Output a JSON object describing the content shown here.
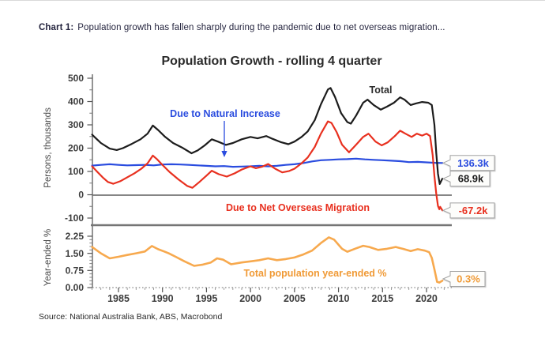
{
  "header": {
    "prefix": "Chart 1:",
    "text": "Population growth has fallen sharply during the pandemic due to net overseas migration..."
  },
  "source": "Source: National Australia Bank, ABS, Macrobond",
  "chart_data": [
    {
      "type": "line",
      "panel": "top",
      "title": "Population Growth - rolling 4 quarter",
      "ylabel": "Persons, thousands",
      "units": "thousands of persons",
      "ylim": [
        -135,
        520
      ],
      "yticks": [
        500,
        400,
        300,
        200,
        100,
        0,
        -100
      ],
      "xlim": [
        1981.8,
        2022.5
      ],
      "xticks": [
        1985,
        1990,
        1995,
        2000,
        2005,
        2010,
        2015,
        2020
      ],
      "grid": false,
      "legend_position": "inline-annotations",
      "series": [
        {
          "name": "Total",
          "color": "#1c1c1c",
          "end_label": "68.9k",
          "points": [
            [
              1982.0,
              258
            ],
            [
              1982.5,
              240
            ],
            [
              1983.0,
              222
            ],
            [
              1984.0,
              198
            ],
            [
              1984.8,
              192
            ],
            [
              1985.5,
              200
            ],
            [
              1986.5,
              218
            ],
            [
              1987.5,
              238
            ],
            [
              1988.3,
              262
            ],
            [
              1988.9,
              297
            ],
            [
              1989.5,
              278
            ],
            [
              1990.3,
              248
            ],
            [
              1991.2,
              222
            ],
            [
              1992.2,
              203
            ],
            [
              1993.3,
              178
            ],
            [
              1994.0,
              190
            ],
            [
              1994.8,
              212
            ],
            [
              1995.6,
              238
            ],
            [
              1996.3,
              228
            ],
            [
              1997.2,
              214
            ],
            [
              1998.0,
              222
            ],
            [
              1999.0,
              238
            ],
            [
              2000.0,
              248
            ],
            [
              2000.8,
              242
            ],
            [
              2001.8,
              252
            ],
            [
              2002.5,
              240
            ],
            [
              2003.5,
              225
            ],
            [
              2004.3,
              217
            ],
            [
              2005.0,
              228
            ],
            [
              2005.8,
              248
            ],
            [
              2006.5,
              272
            ],
            [
              2007.3,
              320
            ],
            [
              2008.0,
              388
            ],
            [
              2008.8,
              452
            ],
            [
              2009.1,
              458
            ],
            [
              2009.6,
              420
            ],
            [
              2010.3,
              350
            ],
            [
              2011.0,
              312
            ],
            [
              2011.4,
              305
            ],
            [
              2012.0,
              340
            ],
            [
              2012.8,
              395
            ],
            [
              2013.3,
              408
            ],
            [
              2014.0,
              385
            ],
            [
              2014.8,
              365
            ],
            [
              2015.5,
              378
            ],
            [
              2016.3,
              395
            ],
            [
              2017.0,
              418
            ],
            [
              2017.5,
              408
            ],
            [
              2018.2,
              385
            ],
            [
              2018.8,
              392
            ],
            [
              2019.5,
              398
            ],
            [
              2020.2,
              395
            ],
            [
              2020.6,
              385
            ],
            [
              2020.9,
              300
            ],
            [
              2021.1,
              180
            ],
            [
              2021.3,
              90
            ],
            [
              2021.5,
              46
            ],
            [
              2021.65,
              58
            ],
            [
              2021.8,
              69
            ]
          ]
        },
        {
          "name": "Due to Natural Increase",
          "color": "#2a4cdf",
          "end_label": "136.3k",
          "points": [
            [
              1982,
              125
            ],
            [
              1983,
              128
            ],
            [
              1984,
              131
            ],
            [
              1985,
              128
            ],
            [
              1986,
              126
            ],
            [
              1987,
              127
            ],
            [
              1988,
              128
            ],
            [
              1989,
              126
            ],
            [
              1990,
              130
            ],
            [
              1991,
              131
            ],
            [
              1992,
              130
            ],
            [
              1993,
              128
            ],
            [
              1994,
              126
            ],
            [
              1995,
              124
            ],
            [
              1996,
              122
            ],
            [
              1997,
              123
            ],
            [
              1998,
              120
            ],
            [
              1999,
              121
            ],
            [
              2000,
              122
            ],
            [
              2001,
              124
            ],
            [
              2002,
              122
            ],
            [
              2003,
              124
            ],
            [
              2004,
              128
            ],
            [
              2005,
              131
            ],
            [
              2006,
              136
            ],
            [
              2007,
              143
            ],
            [
              2008,
              148
            ],
            [
              2009,
              150
            ],
            [
              2010,
              152
            ],
            [
              2011,
              153
            ],
            [
              2012,
              155
            ],
            [
              2013,
              152
            ],
            [
              2014,
              150
            ],
            [
              2015,
              148
            ],
            [
              2016,
              146
            ],
            [
              2017,
              144
            ],
            [
              2018,
              140
            ],
            [
              2019,
              141
            ],
            [
              2020,
              139
            ],
            [
              2021,
              137
            ],
            [
              2021.8,
              136.3
            ]
          ]
        },
        {
          "name": "Due to Net Overseas Migration",
          "color": "#e8301f",
          "end_label": "-67.2k",
          "points": [
            [
              1982.0,
              122
            ],
            [
              1982.6,
              98
            ],
            [
              1983.2,
              75
            ],
            [
              1983.8,
              55
            ],
            [
              1984.4,
              47
            ],
            [
              1985.2,
              58
            ],
            [
              1986.0,
              75
            ],
            [
              1986.8,
              92
            ],
            [
              1987.6,
              112
            ],
            [
              1988.3,
              135
            ],
            [
              1988.9,
              168
            ],
            [
              1989.4,
              152
            ],
            [
              1990.0,
              128
            ],
            [
              1990.8,
              98
            ],
            [
              1991.8,
              66
            ],
            [
              1992.8,
              38
            ],
            [
              1993.4,
              30
            ],
            [
              1994.2,
              55
            ],
            [
              1995.0,
              82
            ],
            [
              1995.6,
              103
            ],
            [
              1996.4,
              88
            ],
            [
              1997.3,
              78
            ],
            [
              1998.2,
              92
            ],
            [
              1999.0,
              108
            ],
            [
              2000.0,
              122
            ],
            [
              2000.6,
              114
            ],
            [
              2001.3,
              120
            ],
            [
              2002.0,
              132
            ],
            [
              2002.8,
              112
            ],
            [
              2003.6,
              96
            ],
            [
              2004.4,
              102
            ],
            [
              2005.0,
              112
            ],
            [
              2005.8,
              135
            ],
            [
              2006.5,
              160
            ],
            [
              2007.3,
              205
            ],
            [
              2008.0,
              262
            ],
            [
              2008.8,
              315
            ],
            [
              2009.2,
              308
            ],
            [
              2009.8,
              268
            ],
            [
              2010.4,
              215
            ],
            [
              2011.2,
              182
            ],
            [
              2012.0,
              215
            ],
            [
              2012.8,
              248
            ],
            [
              2013.4,
              262
            ],
            [
              2014.2,
              228
            ],
            [
              2014.9,
              212
            ],
            [
              2015.6,
              225
            ],
            [
              2016.4,
              252
            ],
            [
              2017.0,
              275
            ],
            [
              2017.6,
              262
            ],
            [
              2018.3,
              248
            ],
            [
              2018.9,
              262
            ],
            [
              2019.5,
              254
            ],
            [
              2020.0,
              262
            ],
            [
              2020.4,
              252
            ],
            [
              2020.7,
              170
            ],
            [
              2020.9,
              80
            ],
            [
              2021.1,
              5
            ],
            [
              2021.3,
              -48
            ],
            [
              2021.45,
              -62
            ],
            [
              2021.55,
              -52
            ],
            [
              2021.8,
              -67.2
            ]
          ]
        }
      ]
    },
    {
      "type": "line",
      "panel": "bottom",
      "ylabel": "Year-ended %",
      "units": "percent",
      "ylim": [
        0,
        2.5
      ],
      "yticks": [
        2.25,
        1.5,
        0.75,
        0
      ],
      "ytick_labels": [
        "2.25",
        "1.50",
        "0.75",
        "0.00"
      ],
      "xlim": [
        1981.8,
        2022.5
      ],
      "xticks": [
        1985,
        1990,
        1995,
        2000,
        2005,
        2010,
        2015,
        2020
      ],
      "grid": false,
      "series": [
        {
          "name": "Total population year-ended %",
          "color": "#f7a94e",
          "end_label": "0.3%",
          "points": [
            [
              1982.0,
              1.78
            ],
            [
              1983.0,
              1.5
            ],
            [
              1984.0,
              1.28
            ],
            [
              1985.0,
              1.35
            ],
            [
              1986.0,
              1.43
            ],
            [
              1987.0,
              1.5
            ],
            [
              1988.0,
              1.58
            ],
            [
              1988.8,
              1.82
            ],
            [
              1989.5,
              1.68
            ],
            [
              1990.2,
              1.58
            ],
            [
              1990.7,
              1.5
            ],
            [
              1991.5,
              1.35
            ],
            [
              1992.5,
              1.15
            ],
            [
              1993.6,
              0.95
            ],
            [
              1994.5,
              1.0
            ],
            [
              1995.5,
              1.1
            ],
            [
              1996.2,
              1.28
            ],
            [
              1996.9,
              1.22
            ],
            [
              1997.8,
              1.02
            ],
            [
              1999.0,
              1.1
            ],
            [
              2000.0,
              1.15
            ],
            [
              2001.0,
              1.2
            ],
            [
              2002.0,
              1.28
            ],
            [
              2003.0,
              1.2
            ],
            [
              2004.0,
              1.25
            ],
            [
              2005.0,
              1.32
            ],
            [
              2006.0,
              1.45
            ],
            [
              2007.0,
              1.62
            ],
            [
              2008.0,
              1.95
            ],
            [
              2008.9,
              2.2
            ],
            [
              2009.5,
              2.1
            ],
            [
              2010.4,
              1.7
            ],
            [
              2011.0,
              1.57
            ],
            [
              2012.0,
              1.72
            ],
            [
              2012.8,
              1.83
            ],
            [
              2013.5,
              1.78
            ],
            [
              2014.5,
              1.65
            ],
            [
              2015.5,
              1.7
            ],
            [
              2016.5,
              1.78
            ],
            [
              2017.3,
              1.7
            ],
            [
              2018.2,
              1.6
            ],
            [
              2019.0,
              1.68
            ],
            [
              2019.8,
              1.62
            ],
            [
              2020.3,
              1.55
            ],
            [
              2020.6,
              1.3
            ],
            [
              2020.9,
              0.8
            ],
            [
              2021.2,
              0.25
            ],
            [
              2021.45,
              0.22
            ],
            [
              2021.8,
              0.3
            ]
          ]
        }
      ]
    }
  ]
}
